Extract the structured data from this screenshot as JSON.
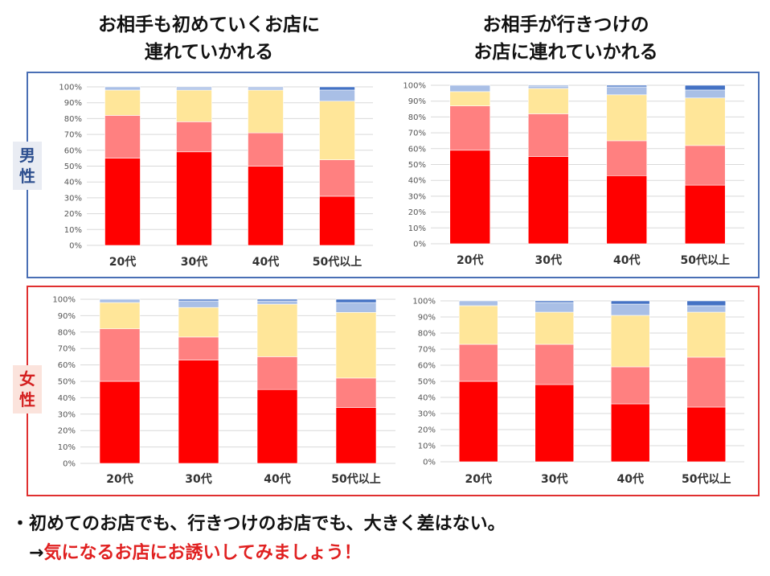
{
  "headers": {
    "left_line1": "お相手も初めていくお店に",
    "left_line2": "連れていかれる",
    "right_line1": "お相手が行きつけの",
    "right_line2": "お店に連れていかれる"
  },
  "rows": {
    "male_line1": "男",
    "male_line2": "性",
    "female_line1": "女",
    "female_line2": "性"
  },
  "notes": {
    "line1": "・初めてのお店でも、行きつけのお店でも、大きく差はない。",
    "arrow": "→",
    "line2": "気になるお店にお誘いしてみましょう！"
  },
  "colors": {
    "male_border": "#4a6fb5",
    "female_border": "#e03030",
    "series": [
      "#ff0000",
      "#ff8080",
      "#ffe699",
      "#a9bfe6",
      "#4472c4"
    ]
  },
  "chart_data": [
    {
      "type": "bar",
      "stacked": true,
      "categories": [
        "20代",
        "30代",
        "40代",
        "50代以上"
      ],
      "ylim": [
        0,
        100
      ],
      "yticks": [
        "0%",
        "10%",
        "20%",
        "30%",
        "40%",
        "50%",
        "60%",
        "70%",
        "80%",
        "90%",
        "100%"
      ],
      "grid": true,
      "series": [
        {
          "values": [
            55,
            59,
            50,
            31
          ]
        },
        {
          "values": [
            27,
            19,
            21,
            23
          ]
        },
        {
          "values": [
            16,
            20,
            27,
            37
          ]
        },
        {
          "values": [
            2,
            1.5,
            1.5,
            7
          ]
        },
        {
          "values": [
            0,
            0.5,
            0.5,
            2
          ]
        }
      ]
    },
    {
      "type": "bar",
      "stacked": true,
      "categories": [
        "20代",
        "30代",
        "40代",
        "50代以上"
      ],
      "ylim": [
        0,
        100
      ],
      "yticks": [
        "0%",
        "10%",
        "20%",
        "30%",
        "40%",
        "50%",
        "60%",
        "70%",
        "80%",
        "90%",
        "100%"
      ],
      "grid": true,
      "series": [
        {
          "values": [
            59,
            55,
            43,
            37
          ]
        },
        {
          "values": [
            28,
            27,
            22,
            25
          ]
        },
        {
          "values": [
            9,
            16,
            29,
            30
          ]
        },
        {
          "values": [
            4,
            1.5,
            5,
            5
          ]
        },
        {
          "values": [
            0,
            0.5,
            1,
            3
          ]
        }
      ]
    },
    {
      "type": "bar",
      "stacked": true,
      "categories": [
        "20代",
        "30代",
        "40代",
        "50代以上"
      ],
      "ylim": [
        0,
        100
      ],
      "yticks": [
        "0%",
        "10%",
        "20%",
        "30%",
        "40%",
        "50%",
        "60%",
        "70%",
        "80%",
        "90%",
        "100%"
      ],
      "grid": true,
      "series": [
        {
          "values": [
            50,
            63,
            45,
            34
          ]
        },
        {
          "values": [
            32,
            14,
            20,
            18
          ]
        },
        {
          "values": [
            16,
            18,
            32,
            40
          ]
        },
        {
          "values": [
            2,
            4,
            2,
            6
          ]
        },
        {
          "values": [
            0,
            1,
            1,
            2
          ]
        }
      ]
    },
    {
      "type": "bar",
      "stacked": true,
      "categories": [
        "20代",
        "30代",
        "40代",
        "50代以上"
      ],
      "ylim": [
        0,
        100
      ],
      "yticks": [
        "0%",
        "10%",
        "20%",
        "30%",
        "40%",
        "50%",
        "60%",
        "70%",
        "80%",
        "90%",
        "100%"
      ],
      "grid": true,
      "series": [
        {
          "values": [
            50,
            48,
            36,
            34
          ]
        },
        {
          "values": [
            23,
            25,
            23,
            31
          ]
        },
        {
          "values": [
            24,
            20,
            32,
            28
          ]
        },
        {
          "values": [
            3,
            6,
            7,
            4
          ]
        },
        {
          "values": [
            0,
            1,
            2,
            3
          ]
        }
      ]
    }
  ]
}
